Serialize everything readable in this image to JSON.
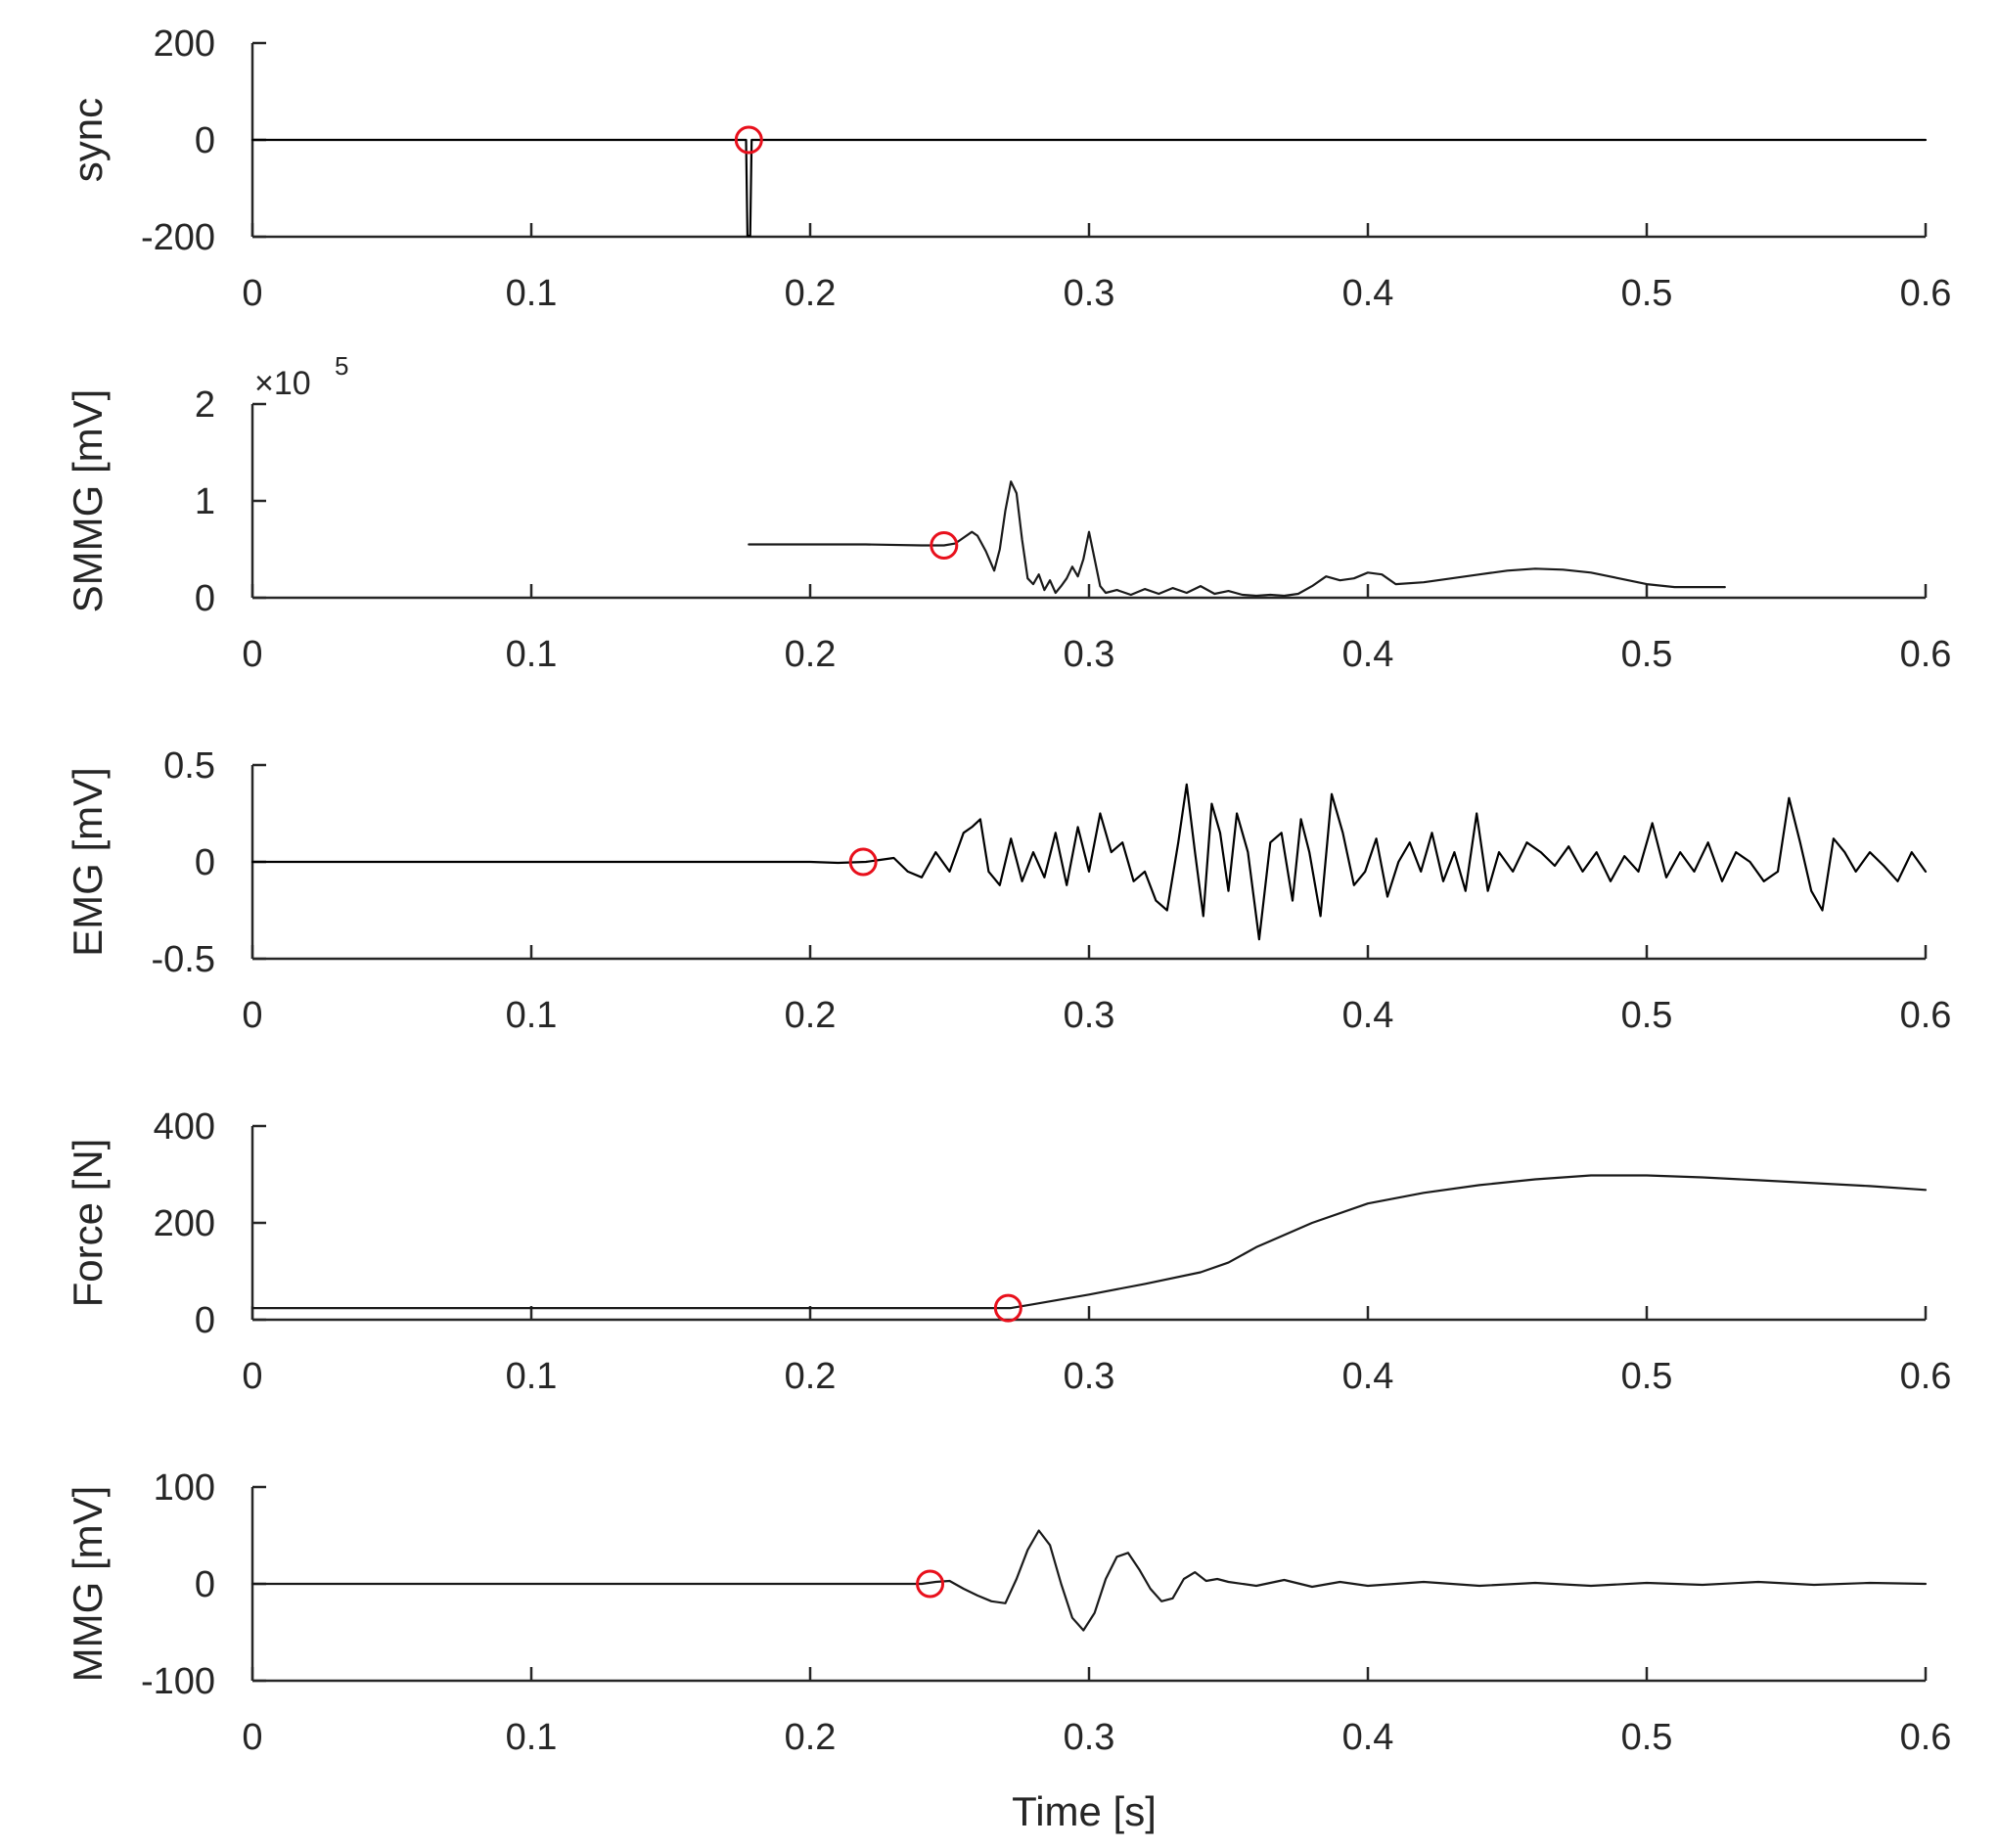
{
  "figure": {
    "xlabel": "Time [s]"
  },
  "chart_data": [
    {
      "type": "line",
      "ylabel": "sync",
      "xlim": [
        0,
        0.6
      ],
      "ylim": [
        -200,
        200
      ],
      "xticks": [
        "0",
        "0.1",
        "0.2",
        "0.3",
        "0.4",
        "0.5",
        "0.6"
      ],
      "yticks": [
        "-200",
        "0",
        "200"
      ],
      "series": [
        {
          "color": "#000000",
          "line_width": 2.2,
          "x": [
            0,
            0.177,
            0.1775,
            0.178,
            0.1785,
            0.179,
            0.6
          ],
          "y": [
            0,
            0,
            -198,
            -198,
            -198,
            0,
            0
          ]
        }
      ],
      "onset_marker": {
        "x": 0.178,
        "y": 0,
        "color": "#e8101c"
      }
    },
    {
      "type": "line",
      "ylabel": "SMMG [mV]",
      "exponent_label": "×10",
      "exponent_power": "5",
      "xlim": [
        0,
        0.6
      ],
      "ylim": [
        0,
        2
      ],
      "xticks": [
        "0",
        "0.1",
        "0.2",
        "0.3",
        "0.4",
        "0.5",
        "0.6"
      ],
      "yticks": [
        "0",
        "1",
        "2"
      ],
      "series": [
        {
          "color": "#1a1a1a",
          "line_width": 2.2,
          "x": [
            0.178,
            0.2,
            0.22,
            0.24,
            0.248,
            0.252,
            0.255,
            0.258,
            0.26,
            0.263,
            0.266,
            0.268,
            0.27,
            0.272,
            0.274,
            0.276,
            0.278,
            0.28,
            0.282,
            0.284,
            0.286,
            0.288,
            0.29,
            0.292,
            0.294,
            0.296,
            0.298,
            0.3,
            0.302,
            0.304,
            0.306,
            0.31,
            0.315,
            0.32,
            0.325,
            0.33,
            0.335,
            0.34,
            0.345,
            0.35,
            0.355,
            0.36,
            0.365,
            0.37,
            0.375,
            0.38,
            0.385,
            0.39,
            0.395,
            0.4,
            0.405,
            0.41,
            0.42,
            0.43,
            0.44,
            0.45,
            0.46,
            0.47,
            0.48,
            0.49,
            0.5,
            0.51,
            0.52,
            0.528
          ],
          "y": [
            0.55,
            0.55,
            0.55,
            0.54,
            0.54,
            0.56,
            0.62,
            0.68,
            0.64,
            0.48,
            0.28,
            0.5,
            0.9,
            1.2,
            1.08,
            0.6,
            0.2,
            0.14,
            0.24,
            0.08,
            0.18,
            0.05,
            0.12,
            0.2,
            0.32,
            0.22,
            0.4,
            0.68,
            0.4,
            0.12,
            0.05,
            0.08,
            0.03,
            0.09,
            0.04,
            0.1,
            0.05,
            0.12,
            0.04,
            0.07,
            0.03,
            0.02,
            0.03,
            0.02,
            0.04,
            0.12,
            0.22,
            0.18,
            0.2,
            0.26,
            0.24,
            0.14,
            0.16,
            0.2,
            0.24,
            0.28,
            0.3,
            0.29,
            0.26,
            0.2,
            0.14,
            0.11,
            0.11,
            0.11
          ]
        }
      ],
      "onset_marker": {
        "x": 0.248,
        "y": 0.54,
        "color": "#e8101c"
      }
    },
    {
      "type": "line",
      "ylabel": "EMG [mV]",
      "xlim": [
        0,
        0.6
      ],
      "ylim": [
        -0.5,
        0.5
      ],
      "xticks": [
        "0",
        "0.1",
        "0.2",
        "0.3",
        "0.4",
        "0.5",
        "0.6"
      ],
      "yticks": [
        "-0.5",
        "0",
        "0.5"
      ],
      "series": [
        {
          "color": "#000000",
          "line_width": 2.2,
          "x": [
            0,
            0.2,
            0.21,
            0.22,
            0.225,
            0.23,
            0.235,
            0.24,
            0.245,
            0.25,
            0.255,
            0.258,
            0.261,
            0.264,
            0.268,
            0.272,
            0.276,
            0.28,
            0.284,
            0.288,
            0.292,
            0.296,
            0.3,
            0.304,
            0.308,
            0.312,
            0.316,
            0.32,
            0.324,
            0.328,
            0.332,
            0.335,
            0.338,
            0.341,
            0.344,
            0.347,
            0.35,
            0.353,
            0.357,
            0.361,
            0.365,
            0.369,
            0.373,
            0.376,
            0.379,
            0.383,
            0.387,
            0.391,
            0.395,
            0.399,
            0.403,
            0.407,
            0.411,
            0.415,
            0.419,
            0.423,
            0.427,
            0.431,
            0.435,
            0.439,
            0.443,
            0.447,
            0.452,
            0.457,
            0.462,
            0.467,
            0.472,
            0.477,
            0.482,
            0.487,
            0.492,
            0.497,
            0.502,
            0.507,
            0.512,
            0.517,
            0.522,
            0.527,
            0.532,
            0.537,
            0.542,
            0.547,
            0.551,
            0.555,
            0.559,
            0.563,
            0.567,
            0.571,
            0.575,
            0.58,
            0.585,
            0.59,
            0.595,
            0.6
          ],
          "y": [
            0,
            0,
            -0.005,
            0.0,
            0.01,
            0.02,
            -0.05,
            -0.08,
            0.05,
            -0.05,
            0.15,
            0.18,
            0.22,
            -0.05,
            -0.12,
            0.12,
            -0.1,
            0.05,
            -0.08,
            0.15,
            -0.12,
            0.18,
            -0.05,
            0.25,
            0.05,
            0.1,
            -0.1,
            -0.05,
            -0.2,
            -0.25,
            0.1,
            0.4,
            0.05,
            -0.28,
            0.3,
            0.15,
            -0.15,
            0.25,
            0.05,
            -0.4,
            0.1,
            0.15,
            -0.2,
            0.22,
            0.05,
            -0.28,
            0.35,
            0.15,
            -0.12,
            -0.05,
            0.12,
            -0.18,
            0.0,
            0.1,
            -0.05,
            0.15,
            -0.1,
            0.05,
            -0.15,
            0.25,
            -0.15,
            0.05,
            -0.05,
            0.1,
            0.05,
            -0.02,
            0.08,
            -0.05,
            0.05,
            -0.1,
            0.03,
            -0.05,
            0.2,
            -0.08,
            0.05,
            -0.05,
            0.1,
            -0.1,
            0.05,
            0.0,
            -0.1,
            -0.05,
            0.33,
            0.1,
            -0.15,
            -0.25,
            0.12,
            0.05,
            -0.05,
            0.05,
            -0.02,
            -0.1,
            0.05,
            -0.05
          ]
        }
      ],
      "onset_marker": {
        "x": 0.219,
        "y": 0,
        "color": "#e8101c"
      }
    },
    {
      "type": "line",
      "ylabel": "Force [N]",
      "xlim": [
        0,
        0.6
      ],
      "ylim": [
        0,
        400
      ],
      "xticks": [
        "0",
        "0.1",
        "0.2",
        "0.3",
        "0.4",
        "0.5",
        "0.6"
      ],
      "yticks": [
        "0",
        "200",
        "400"
      ],
      "series": [
        {
          "color": "#1a1a1a",
          "line_width": 2.2,
          "x": [
            0,
            0.1,
            0.2,
            0.26,
            0.272,
            0.28,
            0.3,
            0.32,
            0.34,
            0.35,
            0.36,
            0.38,
            0.4,
            0.42,
            0.44,
            0.46,
            0.48,
            0.5,
            0.52,
            0.54,
            0.56,
            0.58,
            0.6
          ],
          "y": [
            24,
            24,
            24,
            24,
            24,
            32,
            52,
            74,
            98,
            118,
            150,
            200,
            240,
            262,
            278,
            290,
            298,
            298,
            294,
            288,
            282,
            276,
            268
          ]
        }
      ],
      "onset_marker": {
        "x": 0.271,
        "y": 24,
        "color": "#e8101c"
      }
    },
    {
      "type": "line",
      "ylabel": "MMG [mV]",
      "xlim": [
        0,
        0.6
      ],
      "ylim": [
        -100,
        100
      ],
      "xticks": [
        "0",
        "0.1",
        "0.2",
        "0.3",
        "0.4",
        "0.5",
        "0.6"
      ],
      "yticks": [
        "-100",
        "0",
        "100"
      ],
      "series": [
        {
          "color": "#1a1a1a",
          "line_width": 2.2,
          "x": [
            0,
            0.2,
            0.24,
            0.245,
            0.25,
            0.255,
            0.26,
            0.265,
            0.27,
            0.274,
            0.278,
            0.282,
            0.286,
            0.29,
            0.294,
            0.298,
            0.302,
            0.306,
            0.31,
            0.314,
            0.318,
            0.322,
            0.326,
            0.33,
            0.334,
            0.338,
            0.342,
            0.346,
            0.35,
            0.36,
            0.37,
            0.38,
            0.39,
            0.4,
            0.42,
            0.44,
            0.46,
            0.48,
            0.5,
            0.52,
            0.54,
            0.56,
            0.58,
            0.6
          ],
          "y": [
            0,
            0,
            0,
            2,
            3,
            -5,
            -12,
            -18,
            -20,
            5,
            35,
            55,
            40,
            0,
            -35,
            -48,
            -30,
            5,
            28,
            32,
            15,
            -5,
            -18,
            -15,
            5,
            12,
            3,
            5,
            2,
            -2,
            4,
            -3,
            2,
            -2,
            2,
            -2,
            1,
            -2,
            1,
            -1,
            2,
            -1,
            1,
            0
          ]
        }
      ],
      "onset_marker": {
        "x": 0.243,
        "y": 0,
        "color": "#e8101c"
      }
    }
  ]
}
